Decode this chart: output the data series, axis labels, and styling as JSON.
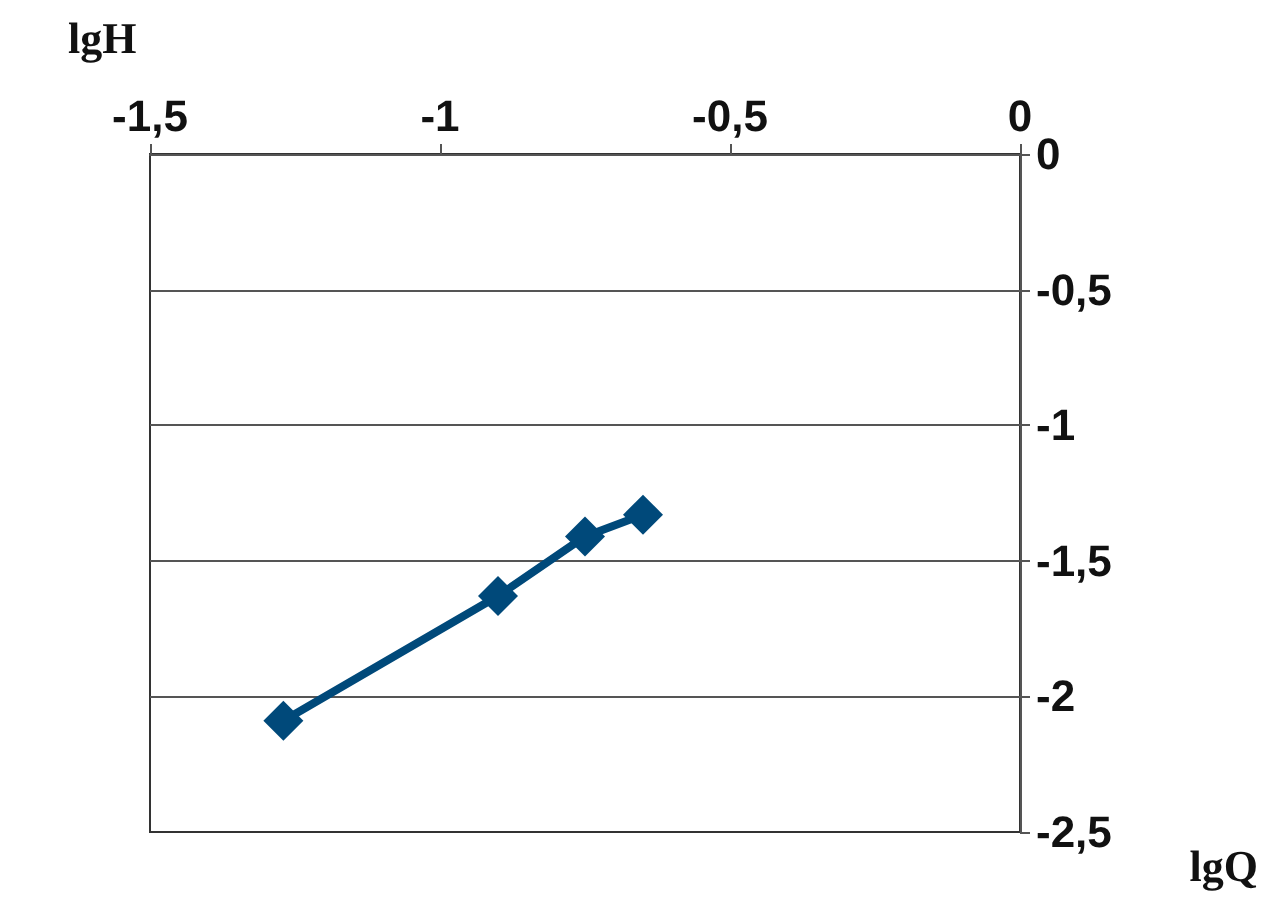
{
  "chart_data": {
    "type": "line",
    "xlabel": "lgQ",
    "ylabel": "lgH",
    "x": [
      -1.27,
      -0.9,
      -0.75,
      -0.65
    ],
    "series": [
      {
        "color": "#00497a",
        "values": [
          -2.09,
          -1.63,
          -1.41,
          -1.33
        ]
      }
    ],
    "xlim": [
      -1.5,
      0
    ],
    "xticks": [
      {
        "value": -1.5,
        "label": "-1,5"
      },
      -1,
      {
        "value": -0.5,
        "label": "-0,5"
      },
      0
    ],
    "ylim": [
      -2.5,
      0
    ],
    "yticks": [
      {
        "value": -2.5,
        "label": "-2,5"
      },
      -2,
      {
        "value": -1.5,
        "label": "-1,5"
      },
      -1,
      {
        "value": -0.5,
        "label": "-0,5"
      },
      0
    ],
    "grid": "y",
    "marker": "diamond",
    "line_style": "solid"
  }
}
